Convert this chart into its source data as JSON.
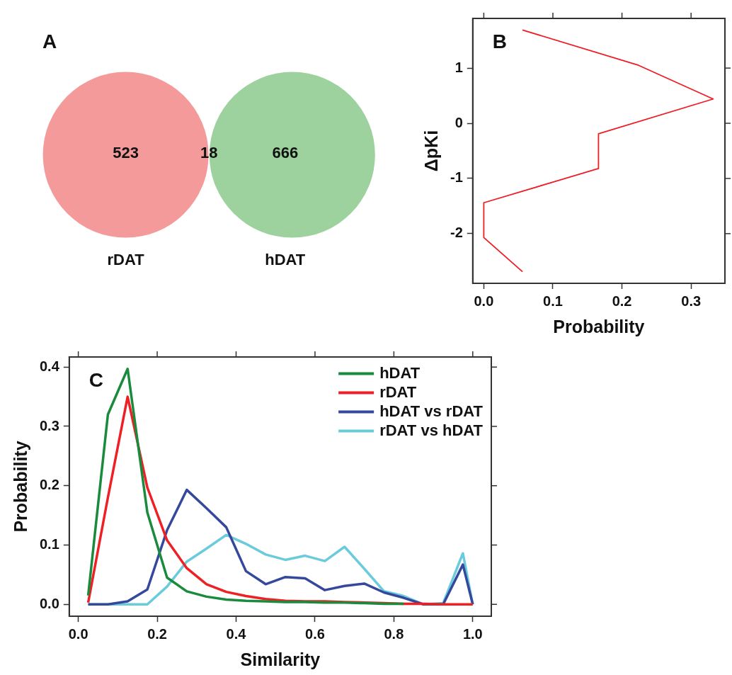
{
  "chart_data": [
    {
      "type": "other",
      "title": "A",
      "categories": [
        "rDAT",
        null,
        "hDAT"
      ],
      "values": [
        523,
        18,
        666
      ],
      "data_labels": true,
      "colors": [
        "#f49a9a",
        "#e2b694",
        "#9dd19d"
      ]
    },
    {
      "type": "line",
      "title": "B",
      "xlabel": "Probability",
      "ylabel": "ΔpKi",
      "xlim": [
        -0.016,
        0.349
      ],
      "ylim": [
        -2.9,
        1.9
      ],
      "xticks": [
        {
          "value": 0,
          "label": "0.0"
        },
        {
          "value": 0.1,
          "label": "0.1"
        },
        {
          "value": 0.2,
          "label": "0.2"
        },
        {
          "value": 0.3,
          "label": "0.3"
        }
      ],
      "yticks": [
        -2,
        -1,
        0,
        1
      ],
      "series": [
        {
          "color": "#f01c24",
          "x": [
            0.056,
            0.224,
            0.332,
            0.166,
            0.166,
            0,
            0,
            0.056
          ],
          "values": [
            1.69,
            1.05,
            0.44,
            -0.19,
            -0.82,
            -1.44,
            -2.07,
            -2.69
          ]
        }
      ]
    },
    {
      "type": "line",
      "title": "C",
      "xlabel": "Similarity",
      "ylabel": "Probability",
      "xlim": [
        -0.023,
        1.047
      ],
      "ylim": [
        -0.02,
        0.417
      ],
      "xticks": [
        {
          "value": 0,
          "label": "0.0"
        },
        {
          "value": 0.2,
          "label": "0.2"
        },
        {
          "value": 0.4,
          "label": "0.4"
        },
        {
          "value": 0.6,
          "label": "0.6"
        },
        {
          "value": 0.8,
          "label": "0.8"
        },
        {
          "value": 1,
          "label": "1.0"
        }
      ],
      "yticks": [
        {
          "value": 0,
          "label": "0.0"
        },
        {
          "value": 0.1,
          "label": "0.1"
        },
        {
          "value": 0.2,
          "label": "0.2"
        },
        {
          "value": 0.3,
          "label": "0.3"
        },
        {
          "value": 0.4,
          "label": "0.4"
        }
      ],
      "x": [
        0.025,
        0.075,
        0.125,
        0.175,
        0.225,
        0.275,
        0.325,
        0.375,
        0.425,
        0.475,
        0.525,
        0.575,
        0.625,
        0.675,
        0.725,
        0.775,
        0.825,
        0.875,
        0.925,
        0.975,
        1.0
      ],
      "legend": "top right",
      "series": [
        {
          "name": "hDAT",
          "color": "#1a8a3c",
          "values": [
            0.015,
            0.32,
            0.397,
            0.155,
            0.045,
            0.022,
            0.013,
            0.008,
            0.006,
            0.005,
            0.004,
            0.004,
            0.003,
            0.003,
            0.002,
            0.001,
            0.001,
            null,
            null,
            null,
            null
          ]
        },
        {
          "name": "rDAT",
          "color": "#ee2024",
          "values": [
            0.003,
            0.18,
            0.35,
            0.197,
            0.108,
            0.061,
            0.034,
            0.021,
            0.014,
            0.009,
            0.006,
            0.005,
            0.005,
            0.004,
            0.003,
            0.002,
            0.001,
            0.001,
            0,
            0,
            0
          ]
        },
        {
          "name": "hDAT vs rDAT",
          "color": "#34489c",
          "values": [
            0,
            0,
            0.005,
            0.025,
            0.125,
            0.193,
            0.162,
            0.13,
            0.056,
            0.034,
            0.046,
            0.044,
            0.024,
            0.031,
            0.035,
            0.02,
            0.011,
            0,
            0,
            0.067,
            0
          ]
        },
        {
          "name": "rDAT vs hDAT",
          "color": "#6acbdc",
          "values": [
            0,
            0,
            0,
            0,
            0.03,
            0.072,
            0.094,
            0.117,
            0.102,
            0.084,
            0.075,
            0.082,
            0.073,
            0.097,
            0.06,
            0.022,
            0.014,
            0,
            0.002,
            0.086,
            0
          ]
        }
      ]
    }
  ]
}
